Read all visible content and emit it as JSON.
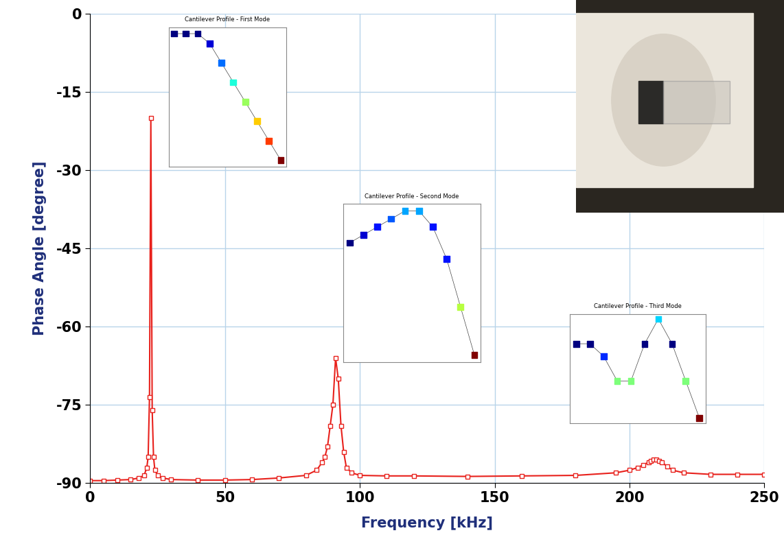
{
  "chart_data": {
    "type": "line",
    "x_label": "Frequency [kHz]",
    "y_label": "Phase Angle [degree]",
    "x": [
      0,
      5,
      10,
      15,
      18,
      20,
      21,
      21.5,
      22,
      22.5,
      23,
      23.5,
      24,
      25,
      27,
      30,
      40,
      50,
      60,
      70,
      80,
      84,
      86,
      87,
      88,
      89,
      90,
      91,
      92,
      93,
      94,
      95,
      97,
      100,
      110,
      120,
      140,
      160,
      180,
      195,
      200,
      203,
      205,
      207,
      208,
      209,
      210,
      211,
      212,
      214,
      216,
      220,
      230,
      240,
      250
    ],
    "values": [
      -89.5,
      -89.5,
      -89.4,
      -89.3,
      -89,
      -88.5,
      -87,
      -85,
      -73.5,
      -20,
      -76,
      -85,
      -87.5,
      -88.5,
      -89,
      -89.3,
      -89.4,
      -89.4,
      -89.3,
      -89,
      -88.5,
      -87.5,
      -86,
      -85,
      -83,
      -79,
      -75,
      -66,
      -70,
      -79,
      -84,
      -87,
      -88,
      -88.5,
      -88.6,
      -88.6,
      -88.7,
      -88.6,
      -88.5,
      -88,
      -87.5,
      -87,
      -86.5,
      -86,
      -85.7,
      -85.5,
      -85.5,
      -85.7,
      -86,
      -86.8,
      -87.5,
      -88,
      -88.3,
      -88.3,
      -88.3
    ],
    "color": "#e8211c",
    "marker": "square",
    "line_style": "solid",
    "xlim": [
      0,
      250
    ],
    "xticks": [
      0,
      50,
      100,
      150,
      200,
      250
    ],
    "ylim": [
      -90,
      0
    ],
    "yticks": [
      -90,
      -75,
      -60,
      -45,
      -30,
      -15,
      0
    ],
    "grid": true,
    "insets": [
      {
        "title": "Cantilever Profile - First Mode",
        "tick_labels": false,
        "x": [
          0,
          0.5,
          1,
          1.5,
          2,
          2.5,
          3,
          3.5,
          4,
          4.5
        ],
        "values": [
          0.2,
          0.2,
          0.2,
          0.15,
          0.05,
          -0.05,
          -0.15,
          -0.25,
          -0.35,
          -0.45
        ]
      },
      {
        "title": "Cantilever Profile - Second Mode",
        "tick_labels": false,
        "x": [
          0,
          0.5,
          1,
          1.5,
          2,
          2.5,
          3,
          3.5,
          4,
          4.5
        ],
        "values": [
          0.2,
          0.25,
          0.3,
          0.35,
          0.4,
          0.4,
          0.3,
          0.1,
          -0.2,
          -0.5
        ]
      },
      {
        "title": "Cantilever Profile - Third Mode",
        "tick_labels": false,
        "x": [
          0,
          0.5,
          1,
          1.5,
          2,
          2.5,
          3,
          3.5,
          4,
          4.5
        ],
        "values": [
          0.2,
          0.2,
          0.1,
          -0.1,
          -0.1,
          0.2,
          0.4,
          0.2,
          -0.1,
          -0.4
        ]
      }
    ]
  }
}
